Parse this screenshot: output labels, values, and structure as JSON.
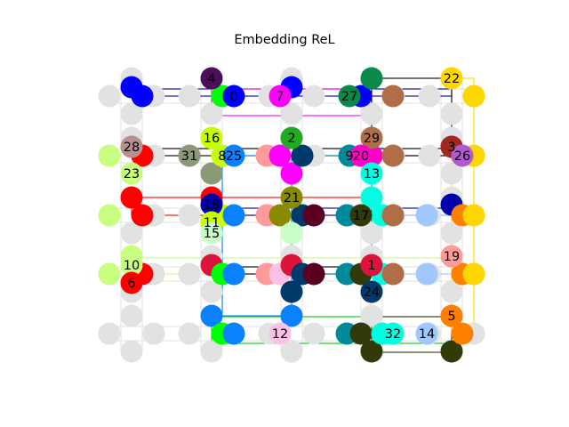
{
  "figure": {
    "title": "Embedding ReL"
  },
  "colors": {
    "grid_line": "#e6e6e6",
    "grid_node": "#e2e2e2"
  },
  "grid": {
    "columns": 5,
    "rows": 5,
    "note": ""
  },
  "labeled_nodes": [
    {
      "label": "4",
      "color": "#4b0f5a"
    },
    {
      "label": "0",
      "color": "#0000ff"
    },
    {
      "label": "7",
      "color": "#ff00ff"
    },
    {
      "label": "27",
      "color": "#0a8a4a"
    },
    {
      "label": "22",
      "color": "#ffd700"
    },
    {
      "label": "28",
      "color": "#b89090"
    },
    {
      "label": "16",
      "color": "#c8ff00"
    },
    {
      "label": "2",
      "color": "#22aa22"
    },
    {
      "label": "29",
      "color": "#b06e48"
    },
    {
      "label": "3",
      "color": "#a0281e"
    },
    {
      "label": "31",
      "color": "#8a9a78"
    },
    {
      "label": "8",
      "color": "#c8ff00"
    },
    {
      "label": "25",
      "color": "#0a82ff"
    },
    {
      "label": "9",
      "color": "#008b9a"
    },
    {
      "label": "20",
      "color": "#ff00c8"
    },
    {
      "label": "26",
      "color": "#b05ad2"
    },
    {
      "label": "23",
      "color": "#c8ff80"
    },
    {
      "label": "13",
      "color": "#00ffe0"
    },
    {
      "label": "21",
      "color": "#8a8a00"
    },
    {
      "label": "18",
      "color": "#0000aa"
    },
    {
      "label": "17",
      "color": "#333a0a"
    },
    {
      "label": "11",
      "color": "#c8ff00"
    },
    {
      "label": "15",
      "color": "#c8ffc8"
    },
    {
      "label": "10",
      "color": "#c8ff80"
    },
    {
      "label": "1",
      "color": "#dc143c"
    },
    {
      "label": "19",
      "color": "#ff9a9a"
    },
    {
      "label": "6",
      "color": "#ff0000"
    },
    {
      "label": "24",
      "color": "#003a6a"
    },
    {
      "label": "5",
      "color": "#ff8000"
    },
    {
      "label": "12",
      "color": "#ffc0e8"
    },
    {
      "label": "32",
      "color": "#00ffe0"
    },
    {
      "label": "14",
      "color": "#a0c8ff"
    }
  ]
}
